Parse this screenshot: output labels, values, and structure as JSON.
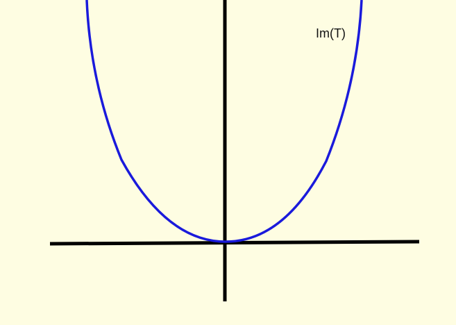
{
  "diagram": {
    "curve_label": "Im(T)",
    "curve_color": "#1a1adb",
    "axis_color": "#000000",
    "background_color": "#fefde2"
  }
}
